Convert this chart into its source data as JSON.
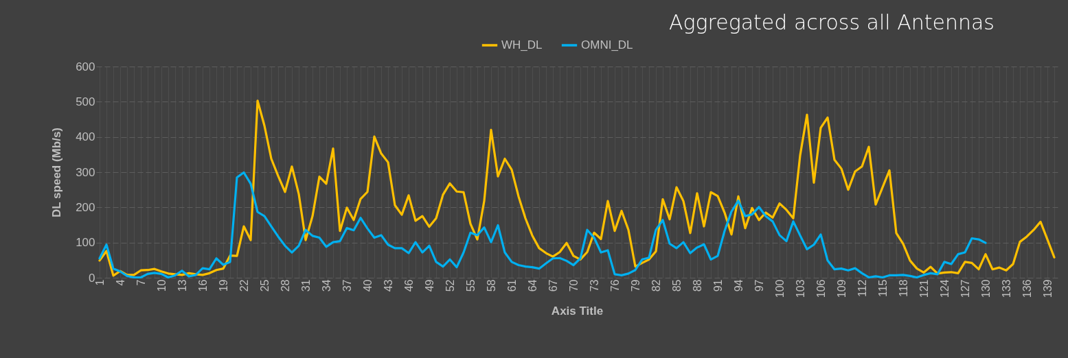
{
  "chart_data": {
    "type": "line",
    "title": "Aggregated across all Antennas",
    "xlabel": "Axis Title",
    "ylabel": "DL speed (Mb/s)",
    "categories": [
      "1",
      null,
      null,
      "4",
      null,
      null,
      "7",
      null,
      null,
      "10",
      null,
      null,
      "13",
      null,
      null,
      "16",
      null,
      null,
      "19",
      null,
      null,
      "22",
      null,
      null,
      "25",
      null,
      null,
      "28",
      null,
      null,
      "31",
      null,
      null,
      "34",
      null,
      null,
      "37",
      null,
      null,
      "40",
      null,
      null,
      "43",
      null,
      null,
      "46",
      null,
      null,
      "49",
      null,
      null,
      "52",
      null,
      null,
      "55",
      null,
      null,
      "58",
      null,
      null,
      "61",
      null,
      null,
      "64",
      null,
      null,
      "67",
      null,
      null,
      "70",
      null,
      null,
      "73",
      null,
      null,
      "76",
      null,
      null,
      "79",
      null,
      null,
      "82",
      null,
      null,
      "85",
      null,
      null,
      "88",
      null,
      null,
      "91",
      null,
      null,
      "94",
      null,
      null,
      "97",
      null,
      null,
      "100",
      null,
      null,
      "103",
      null,
      null,
      "106",
      null,
      null,
      "109",
      null,
      null,
      "112",
      null,
      null,
      "115",
      null,
      null,
      "118",
      null,
      null,
      "121",
      null,
      null,
      "124",
      null,
      null,
      "127",
      null,
      null,
      "130",
      null,
      null,
      "133",
      null,
      null,
      "136",
      null,
      null,
      "139",
      null
    ],
    "series": [
      {
        "name": "WH_DL",
        "color": "#ffc000",
        "values": [
          49,
          76,
          6,
          19,
          8,
          8,
          21,
          22,
          25,
          18,
          12,
          10,
          8,
          13,
          10,
          8,
          13,
          22,
          26,
          63,
          62,
          146,
          107,
          503,
          432,
          338,
          289,
          244,
          316,
          238,
          107,
          175,
          287,
          267,
          367,
          133,
          199,
          164,
          224,
          244,
          401,
          353,
          328,
          206,
          179,
          234,
          162,
          175,
          145,
          169,
          236,
          268,
          245,
          243,
          153,
          109,
          218,
          420,
          288,
          338,
          307,
          231,
          169,
          120,
          84,
          70,
          60,
          73,
          99,
          62,
          52,
          73,
          128,
          110,
          218,
          133,
          190,
          136,
          32,
          42,
          52,
          75,
          223,
          166,
          257,
          218,
          127,
          240,
          146,
          243,
          232,
          185,
          123,
          231,
          141,
          198,
          164,
          185,
          171,
          211,
          193,
          169,
          348,
          463,
          270,
          426,
          455,
          335,
          310,
          250,
          302,
          316,
          372,
          208,
          257,
          305,
          127,
          96,
          49,
          26,
          15,
          31,
          12,
          15,
          16,
          13,
          45,
          42,
          24,
          67,
          24,
          29,
          21,
          39,
          102,
          117,
          136,
          159,
          109,
          58
        ]
      },
      {
        "name": "OMNI_DL",
        "color": "#00b0f0",
        "values": [
          55,
          94,
          26,
          18,
          5,
          1,
          1,
          11,
          14,
          11,
          1,
          7,
          20,
          4,
          8,
          27,
          24,
          55,
          37,
          45,
          285,
          299,
          267,
          187,
          175,
          146,
          117,
          91,
          72,
          91,
          136,
          119,
          114,
          88,
          101,
          104,
          141,
          135,
          170,
          140,
          114,
          121,
          94,
          84,
          84,
          70,
          101,
          72,
          91,
          45,
          32,
          52,
          30,
          72,
          128,
          121,
          143,
          101,
          149,
          72,
          45,
          36,
          32,
          30,
          26,
          41,
          55,
          56,
          48,
          36,
          55,
          136,
          114,
          72,
          78,
          10,
          7,
          12,
          22,
          52,
          57,
          136,
          164,
          97,
          84,
          101,
          70,
          86,
          95,
          52,
          62,
          133,
          188,
          219,
          175,
          180,
          201,
          175,
          160,
          121,
          104,
          160,
          120,
          81,
          94,
          123,
          49,
          24,
          26,
          21,
          27,
          13,
          1,
          4,
          1,
          7,
          7,
          8,
          5,
          1,
          8,
          13,
          10,
          45,
          39,
          67,
          72,
          112,
          109,
          99,
          null,
          null,
          null,
          null,
          null,
          null,
          null,
          null,
          null,
          null
        ]
      }
    ],
    "ylim": [
      0,
      600
    ],
    "yticks": [
      0,
      100,
      200,
      300,
      400,
      500,
      600
    ],
    "grid": true,
    "legend": "top",
    "line_style": "solid"
  }
}
